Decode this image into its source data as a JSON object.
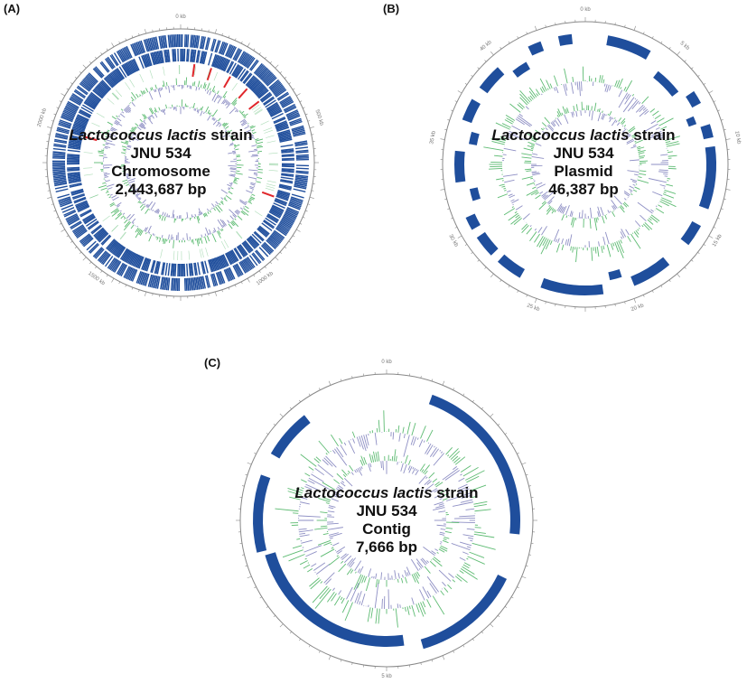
{
  "panels": [
    {
      "id": "A",
      "label": "(A)",
      "organism_italic": "Lactococcus lactis",
      "organism_suffix": " strain",
      "strain": "JNU 534",
      "molecule": "Chromosome",
      "size": "2,443,687 bp",
      "scale_labels": [
        "0 kb",
        "500 kb",
        "1000 kb",
        "1500 kb",
        "2000 kb"
      ],
      "rrna_markers": 7
    },
    {
      "id": "B",
      "label": "(B)",
      "organism_italic": "Lactococcus lactis",
      "organism_suffix": " strain",
      "strain": "JNU 534",
      "molecule": "Plasmid",
      "size": "46,387 bp",
      "scale_labels": [
        "0 kb",
        "5 kb",
        "10 kb",
        "15 kb",
        "20 kb",
        "25 kb",
        "30 kb",
        "35 kb",
        "40 kb"
      ]
    },
    {
      "id": "C",
      "label": "(C)",
      "organism_italic": "Lactococcus lactis",
      "organism_suffix": " strain",
      "strain": "JNU 534",
      "molecule": "Contig",
      "size": "7,666 bp",
      "scale_labels": [
        "0 kb",
        "5 kb"
      ]
    }
  ],
  "colors": {
    "cds": "#1f4e9c",
    "rrna": "#e0262b",
    "gc_positive": "#5dbb72",
    "gc_negative": "#8e8fc4",
    "axis": "#888888"
  }
}
